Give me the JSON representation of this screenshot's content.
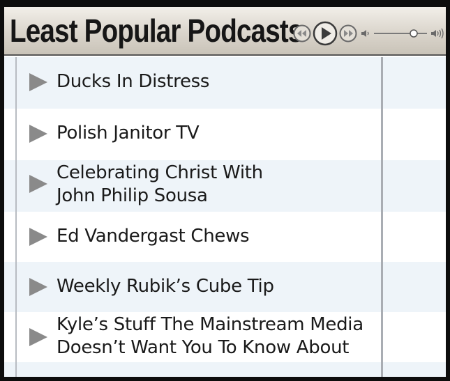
{
  "header": {
    "title": "Least Popular Podcasts"
  },
  "player": {
    "rewind_icon": "rewind-icon",
    "play_icon": "play-icon",
    "forward_icon": "fast-forward-icon",
    "volume_low_icon": "volume-low-icon",
    "volume_high_icon": "volume-high-icon",
    "volume_level": 0.75
  },
  "podcasts": [
    {
      "line1": "Ducks In Distress",
      "line2": ""
    },
    {
      "line1": "Polish Janitor TV",
      "line2": ""
    },
    {
      "line1": "Celebrating Christ With",
      "line2": "John Philip Sousa"
    },
    {
      "line1": "Ed Vandergast Chews",
      "line2": ""
    },
    {
      "line1": "Weekly Rubik’s Cube Tip",
      "line2": ""
    },
    {
      "line1": "Kyle’s Stuff The Mainstream Media",
      "line2": "Doesn’t Want You To Know About"
    }
  ],
  "colors": {
    "row_tint": "#eef4f9",
    "play_triangle": "#8a8a8a",
    "text": "#1a1a1a"
  }
}
